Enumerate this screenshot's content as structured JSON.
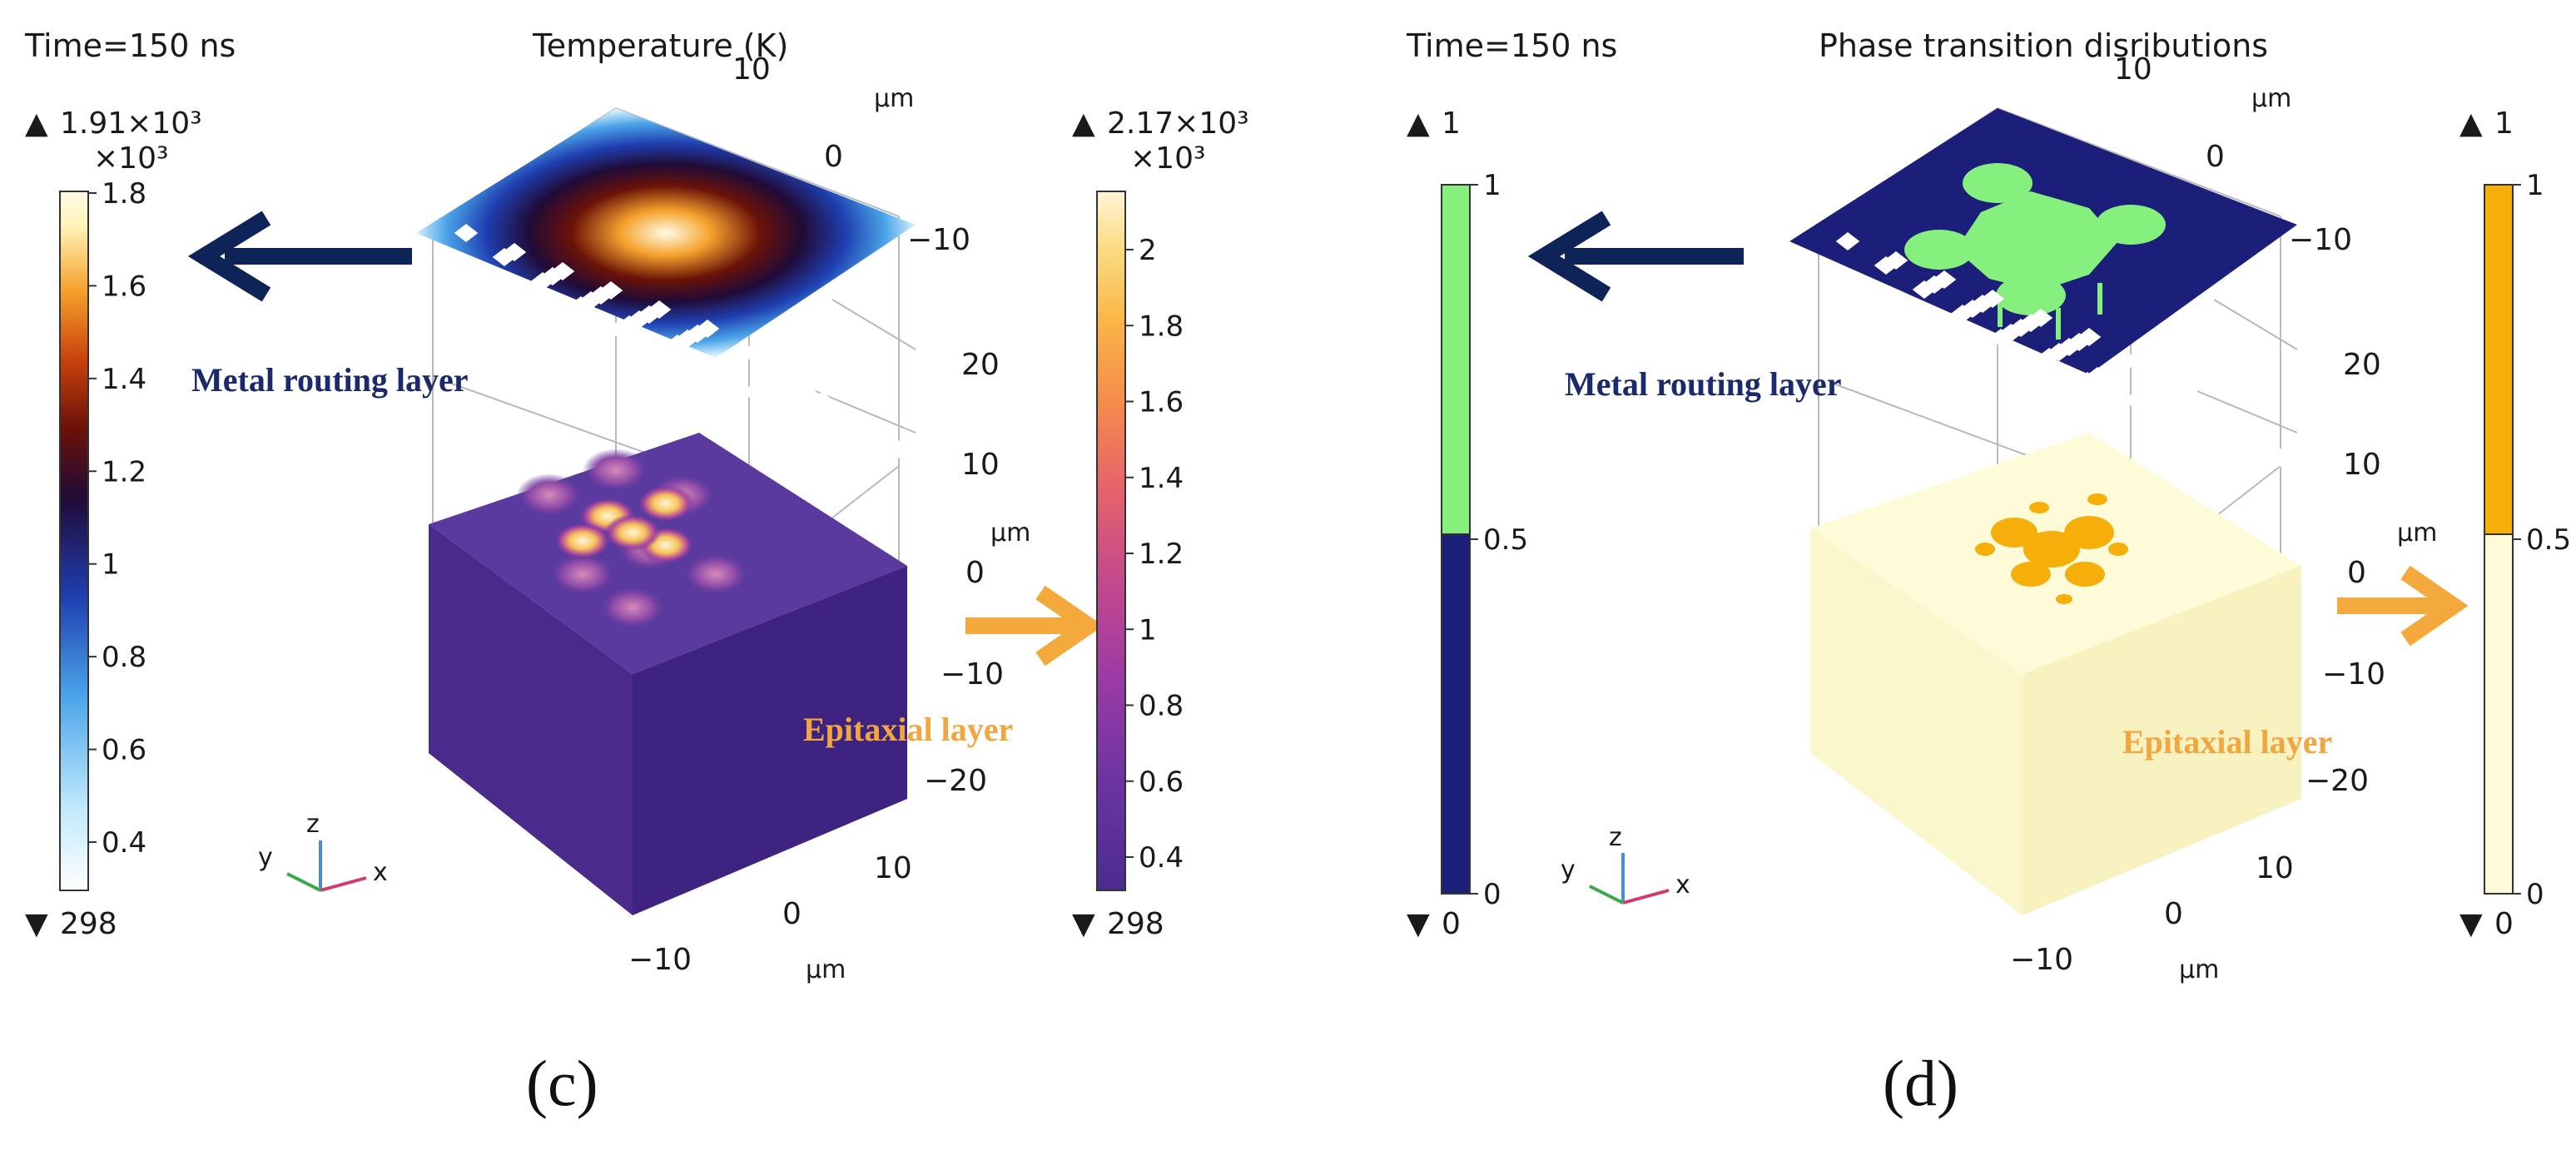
{
  "panels": [
    {
      "id": "c",
      "time": "Time=150 ns",
      "title": "Temperature (K)",
      "caption": "(c)",
      "colorbar_left": {
        "max": "1.91×10³",
        "scale": "×10³",
        "min": "298",
        "ticks": [
          "1.8",
          "1.6",
          "1.4",
          "1.2",
          "1",
          "0.8",
          "0.6",
          "0.4"
        ],
        "colors": [
          "#ffffff",
          "#bfe9fb",
          "#4aa3e8",
          "#1f3fb0",
          "#200b37",
          "#6a1208",
          "#c9430e",
          "#f6a32d",
          "#fff3b8",
          "#fffbe6"
        ]
      },
      "colorbar_right": {
        "max": "2.17×10³",
        "scale": "×10³",
        "min": "298",
        "ticks": [
          "2",
          "1.8",
          "1.6",
          "1.4",
          "1.2",
          "1",
          "0.8",
          "0.6",
          "0.4"
        ],
        "colors": [
          "#4b2c8f",
          "#6a34a2",
          "#9a3aa5",
          "#c54a8a",
          "#e8646a",
          "#f58c4a",
          "#f9b847",
          "#fbdc85",
          "#fff4d6"
        ]
      },
      "labels": {
        "top": "Metal routing layer",
        "bottom": "Epitaxial layer"
      },
      "axis": {
        "unit": "μm",
        "top_ticks": [
          "10",
          "0",
          "−10"
        ],
        "z_ticks": [
          "20",
          "10",
          "0",
          "−10",
          "−20"
        ],
        "bottom_ticks": [
          "10",
          "0",
          "−10"
        ],
        "triad": {
          "x": "x",
          "y": "y",
          "z": "z"
        }
      }
    },
    {
      "id": "d",
      "time": "Time=150 ns",
      "title": "Phase transition disributions",
      "caption": "(d)",
      "colorbar_left": {
        "max": "1",
        "min": "0",
        "ticks": [
          "1",
          "0.5",
          "0"
        ],
        "colors": [
          "#1b1f7a",
          "#85f07d"
        ]
      },
      "colorbar_right": {
        "max": "1",
        "min": "0",
        "ticks": [
          "1",
          "0.5",
          "0"
        ],
        "colors": [
          "#fdfbd8",
          "#f6ae08"
        ]
      },
      "labels": {
        "top": "Metal routing layer",
        "bottom": "Epitaxial layer"
      },
      "axis": {
        "unit": "μm",
        "top_ticks": [
          "10",
          "0",
          "−10"
        ],
        "z_ticks": [
          "20",
          "10",
          "0",
          "−10",
          "−20"
        ],
        "bottom_ticks": [
          "10",
          "0",
          "−10"
        ],
        "triad": {
          "x": "x",
          "y": "y",
          "z": "z"
        }
      }
    }
  ],
  "style": {
    "arrow_navy": "#0e2459",
    "arrow_orange": "#f4a93c",
    "label_navy": "#1a2a6c",
    "label_orange": "#f2a640",
    "cube_front": "#4a2a8a",
    "cube_side": "#3a1f73",
    "cube_top": "#5a3a9e",
    "grid_navy": "#1b1f7a",
    "phase_green": "#85f07d",
    "phase_cream": "#fdfbd8",
    "phase_orange": "#f6ae08"
  }
}
